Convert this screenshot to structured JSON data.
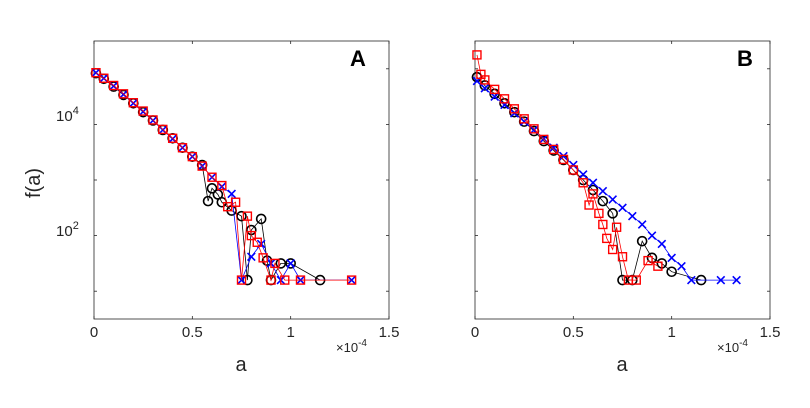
{
  "figure": {
    "ylabel": "f(a)",
    "ytick_labels": [
      {
        "text": "10",
        "exp": "4"
      },
      {
        "text": "10",
        "exp": "2"
      }
    ]
  },
  "chart_data": [
    {
      "type": "scatter",
      "panel_label": "A",
      "xlabel": "a",
      "x_multiplier": "×10",
      "x_multiplier_exp": "-4",
      "ylabel": "f(a)",
      "yscale": "log",
      "xlim": [
        0,
        1.5
      ],
      "ylim_log10": [
        0.5,
        5.5
      ],
      "xticks": [
        0,
        0.5,
        1,
        1.5
      ],
      "xtick_labels": [
        "0",
        "0.5",
        "1",
        "1.5"
      ],
      "yticks_log10": [
        4,
        2
      ],
      "grid": false,
      "series": [
        {
          "marker": "circle",
          "color": "#000000",
          "points": [
            [
              0.01,
              4.92
            ],
            [
              0.05,
              4.82
            ],
            [
              0.1,
              4.68
            ],
            [
              0.15,
              4.53
            ],
            [
              0.2,
              4.38
            ],
            [
              0.25,
              4.22
            ],
            [
              0.3,
              4.07
            ],
            [
              0.35,
              3.9
            ],
            [
              0.4,
              3.75
            ],
            [
              0.45,
              3.58
            ],
            [
              0.5,
              3.42
            ],
            [
              0.55,
              3.27
            ],
            [
              0.58,
              2.62
            ],
            [
              0.6,
              2.85
            ],
            [
              0.63,
              2.74
            ],
            [
              0.65,
              2.6
            ],
            [
              0.7,
              2.45
            ],
            [
              0.75,
              2.35
            ],
            [
              0.78,
              1.2
            ],
            [
              0.8,
              2.1
            ],
            [
              0.85,
              2.3
            ],
            [
              0.88,
              1.55
            ],
            [
              0.9,
              1.2
            ],
            [
              0.95,
              1.5
            ],
            [
              1.0,
              1.5
            ],
            [
              1.15,
              1.2
            ]
          ]
        },
        {
          "marker": "x",
          "color": "#0000ff",
          "points": [
            [
              0.01,
              4.93
            ],
            [
              0.05,
              4.83
            ],
            [
              0.1,
              4.69
            ],
            [
              0.15,
              4.54
            ],
            [
              0.2,
              4.38
            ],
            [
              0.25,
              4.23
            ],
            [
              0.3,
              4.07
            ],
            [
              0.35,
              3.9
            ],
            [
              0.4,
              3.74
            ],
            [
              0.45,
              3.58
            ],
            [
              0.5,
              3.42
            ],
            [
              0.55,
              3.25
            ],
            [
              0.6,
              3.05
            ],
            [
              0.65,
              2.88
            ],
            [
              0.7,
              2.75
            ],
            [
              0.75,
              1.2
            ],
            [
              0.8,
              1.62
            ],
            [
              0.85,
              1.85
            ],
            [
              0.9,
              1.5
            ],
            [
              0.95,
              1.2
            ],
            [
              1.0,
              1.5
            ],
            [
              1.05,
              1.2
            ],
            [
              1.31,
              1.2
            ]
          ]
        },
        {
          "marker": "square",
          "color": "#ff0000",
          "points": [
            [
              0.01,
              4.93
            ],
            [
              0.05,
              4.83
            ],
            [
              0.1,
              4.7
            ],
            [
              0.15,
              4.55
            ],
            [
              0.2,
              4.39
            ],
            [
              0.25,
              4.24
            ],
            [
              0.3,
              4.08
            ],
            [
              0.35,
              3.91
            ],
            [
              0.4,
              3.75
            ],
            [
              0.45,
              3.58
            ],
            [
              0.5,
              3.42
            ],
            [
              0.55,
              3.25
            ],
            [
              0.6,
              3.05
            ],
            [
              0.65,
              2.9
            ],
            [
              0.68,
              2.52
            ],
            [
              0.72,
              2.6
            ],
            [
              0.75,
              1.2
            ],
            [
              0.78,
              2.35
            ],
            [
              0.8,
              2.0
            ],
            [
              0.83,
              1.88
            ],
            [
              0.86,
              1.6
            ],
            [
              0.9,
              1.2
            ],
            [
              0.92,
              1.5
            ],
            [
              0.97,
              1.2
            ],
            [
              1.05,
              1.2
            ],
            [
              1.31,
              1.2
            ]
          ]
        }
      ]
    },
    {
      "type": "scatter",
      "panel_label": "B",
      "xlabel": "a",
      "x_multiplier": "×10",
      "x_multiplier_exp": "-4",
      "yscale": "log",
      "xlim": [
        0,
        1.5
      ],
      "ylim_log10": [
        0.5,
        5.5
      ],
      "xticks": [
        0,
        0.5,
        1,
        1.5
      ],
      "xtick_labels": [
        "0",
        "0.5",
        "1",
        "1.5"
      ],
      "grid": false,
      "series": [
        {
          "marker": "circle",
          "color": "#000000",
          "points": [
            [
              0.01,
              4.85
            ],
            [
              0.05,
              4.7
            ],
            [
              0.1,
              4.55
            ],
            [
              0.15,
              4.38
            ],
            [
              0.2,
              4.22
            ],
            [
              0.25,
              4.05
            ],
            [
              0.3,
              3.88
            ],
            [
              0.35,
              3.7
            ],
            [
              0.4,
              3.53
            ],
            [
              0.45,
              3.36
            ],
            [
              0.5,
              3.18
            ],
            [
              0.55,
              3.0
            ],
            [
              0.6,
              2.82
            ],
            [
              0.65,
              2.62
            ],
            [
              0.7,
              2.4
            ],
            [
              0.75,
              1.2
            ],
            [
              0.8,
              1.2
            ],
            [
              0.85,
              1.9
            ],
            [
              0.9,
              1.6
            ],
            [
              0.95,
              1.5
            ],
            [
              1.0,
              1.35
            ],
            [
              1.15,
              1.2
            ]
          ]
        },
        {
          "marker": "x",
          "color": "#0000ff",
          "points": [
            [
              0.01,
              4.78
            ],
            [
              0.05,
              4.65
            ],
            [
              0.1,
              4.5
            ],
            [
              0.15,
              4.35
            ],
            [
              0.2,
              4.2
            ],
            [
              0.25,
              4.05
            ],
            [
              0.3,
              3.9
            ],
            [
              0.35,
              3.74
            ],
            [
              0.4,
              3.58
            ],
            [
              0.45,
              3.43
            ],
            [
              0.5,
              3.27
            ],
            [
              0.55,
              3.1
            ],
            [
              0.6,
              2.95
            ],
            [
              0.65,
              2.8
            ],
            [
              0.7,
              2.65
            ],
            [
              0.75,
              2.5
            ],
            [
              0.8,
              2.35
            ],
            [
              0.85,
              2.2
            ],
            [
              0.9,
              2.0
            ],
            [
              0.95,
              1.85
            ],
            [
              1.0,
              1.6
            ],
            [
              1.05,
              1.45
            ],
            [
              1.1,
              1.2
            ],
            [
              1.25,
              1.2
            ],
            [
              1.33,
              1.2
            ]
          ]
        },
        {
          "marker": "square",
          "color": "#ff0000",
          "points": [
            [
              0.01,
              5.25
            ],
            [
              0.03,
              4.9
            ],
            [
              0.05,
              4.8
            ],
            [
              0.1,
              4.63
            ],
            [
              0.15,
              4.46
            ],
            [
              0.2,
              4.28
            ],
            [
              0.25,
              4.1
            ],
            [
              0.3,
              3.92
            ],
            [
              0.35,
              3.73
            ],
            [
              0.4,
              3.55
            ],
            [
              0.45,
              3.37
            ],
            [
              0.5,
              3.18
            ],
            [
              0.55,
              2.95
            ],
            [
              0.58,
              2.55
            ],
            [
              0.6,
              2.75
            ],
            [
              0.63,
              2.4
            ],
            [
              0.65,
              2.2
            ],
            [
              0.67,
              1.95
            ],
            [
              0.7,
              1.75
            ],
            [
              0.72,
              2.15
            ],
            [
              0.75,
              1.62
            ],
            [
              0.78,
              1.2
            ],
            [
              0.82,
              1.2
            ],
            [
              0.88,
              1.55
            ],
            [
              0.93,
              1.45
            ]
          ]
        }
      ]
    }
  ]
}
